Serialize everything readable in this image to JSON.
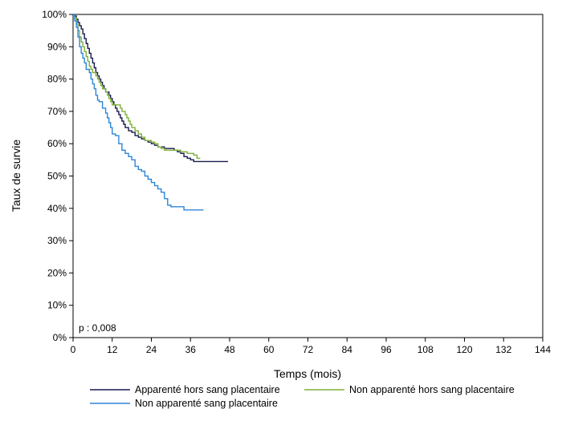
{
  "chart_data": {
    "type": "line",
    "xlabel": "Temps (mois)",
    "ylabel": "Taux de survie",
    "xlim": [
      0,
      144
    ],
    "ylim": [
      0,
      100
    ],
    "x_ticks": [
      0,
      12,
      24,
      36,
      48,
      60,
      72,
      84,
      96,
      108,
      120,
      132,
      144
    ],
    "y_ticks": [
      0,
      10,
      20,
      30,
      40,
      50,
      60,
      70,
      80,
      90,
      100
    ],
    "y_tick_labels": [
      "0%",
      "10%",
      "20%",
      "30%",
      "40%",
      "50%",
      "60%",
      "70%",
      "80%",
      "90%",
      "100%"
    ],
    "grid": false,
    "legend_position": "bottom",
    "annotation": "p : 0,008",
    "series": [
      {
        "name": "Apparenté hors sang placentaire",
        "color": "#1a1a4e",
        "points": [
          [
            0,
            100
          ],
          [
            0.5,
            99.5
          ],
          [
            1,
            98.5
          ],
          [
            1.5,
            97.5
          ],
          [
            2,
            96.5
          ],
          [
            2.5,
            95.5
          ],
          [
            3,
            94
          ],
          [
            3.5,
            92.5
          ],
          [
            4,
            91
          ],
          [
            4.5,
            89.5
          ],
          [
            5,
            88
          ],
          [
            5.5,
            86.5
          ],
          [
            6,
            85
          ],
          [
            6.5,
            83.5
          ],
          [
            7,
            82
          ],
          [
            7.5,
            81
          ],
          [
            8,
            80
          ],
          [
            8.5,
            79
          ],
          [
            9,
            78
          ],
          [
            9.5,
            77
          ],
          [
            10,
            76
          ],
          [
            11,
            75
          ],
          [
            11.5,
            74
          ],
          [
            12,
            73
          ],
          [
            12.5,
            72
          ],
          [
            13,
            71
          ],
          [
            13.5,
            70
          ],
          [
            14,
            69
          ],
          [
            14.5,
            68
          ],
          [
            15,
            67
          ],
          [
            15.5,
            66
          ],
          [
            16,
            65
          ],
          [
            17,
            64
          ],
          [
            18,
            63.5
          ],
          [
            19,
            62.5
          ],
          [
            20,
            62
          ],
          [
            21,
            61.5
          ],
          [
            22,
            61
          ],
          [
            23,
            60.5
          ],
          [
            24,
            60
          ],
          [
            25,
            59.5
          ],
          [
            26,
            59
          ],
          [
            28,
            58.5
          ],
          [
            30,
            58.5
          ],
          [
            31,
            58
          ],
          [
            32,
            57.5
          ],
          [
            33,
            57
          ],
          [
            34,
            56
          ],
          [
            35,
            55.5
          ],
          [
            36,
            55
          ],
          [
            37,
            54.5
          ],
          [
            47.5,
            54.5
          ]
        ]
      },
      {
        "name": "Non apparenté hors sang placentaire",
        "color": "#7fb03a",
        "points": [
          [
            0,
            100
          ],
          [
            0.5,
            99
          ],
          [
            1,
            97
          ],
          [
            1.5,
            95
          ],
          [
            2,
            93
          ],
          [
            2.5,
            91.5
          ],
          [
            3,
            90
          ],
          [
            3.5,
            88.5
          ],
          [
            4,
            87
          ],
          [
            4.5,
            85.5
          ],
          [
            5,
            84
          ],
          [
            5.5,
            83
          ],
          [
            6,
            82
          ],
          [
            7,
            81
          ],
          [
            7.5,
            80
          ],
          [
            8,
            79
          ],
          [
            8.5,
            78
          ],
          [
            9,
            77
          ],
          [
            10,
            76
          ],
          [
            10.5,
            75
          ],
          [
            11,
            74
          ],
          [
            11.5,
            73
          ],
          [
            12,
            72
          ],
          [
            14,
            72
          ],
          [
            14.5,
            71
          ],
          [
            15,
            70
          ],
          [
            16,
            69
          ],
          [
            16.5,
            68
          ],
          [
            17,
            67
          ],
          [
            17.5,
            66
          ],
          [
            18,
            65
          ],
          [
            19,
            64
          ],
          [
            20,
            63
          ],
          [
            21,
            62
          ],
          [
            22,
            61
          ],
          [
            23,
            61
          ],
          [
            24,
            60.5
          ],
          [
            25,
            60
          ],
          [
            26,
            59
          ],
          [
            27,
            58.5
          ],
          [
            28,
            58
          ],
          [
            30,
            58
          ],
          [
            32,
            58
          ],
          [
            33,
            57.5
          ],
          [
            35,
            57
          ],
          [
            37,
            56.5
          ],
          [
            38,
            55.5
          ],
          [
            39,
            55.5
          ]
        ]
      },
      {
        "name": "Non apparenté sang placentaire",
        "color": "#2e86d6",
        "points": [
          [
            0,
            100
          ],
          [
            0.5,
            98
          ],
          [
            1,
            96
          ],
          [
            1.5,
            93
          ],
          [
            2,
            90
          ],
          [
            2.5,
            88
          ],
          [
            3,
            86.5
          ],
          [
            3.5,
            85
          ],
          [
            4,
            83
          ],
          [
            5,
            82
          ],
          [
            5.5,
            80
          ],
          [
            6,
            78.5
          ],
          [
            6.5,
            77
          ],
          [
            7,
            75
          ],
          [
            7.5,
            73.5
          ],
          [
            8,
            73
          ],
          [
            9,
            71
          ],
          [
            10,
            69.5
          ],
          [
            10.5,
            68
          ],
          [
            11,
            66.5
          ],
          [
            11.5,
            65
          ],
          [
            12,
            63
          ],
          [
            13,
            62.5
          ],
          [
            14,
            60
          ],
          [
            15,
            58
          ],
          [
            16,
            57
          ],
          [
            17,
            56
          ],
          [
            18,
            55
          ],
          [
            19,
            53
          ],
          [
            20,
            52
          ],
          [
            21,
            51.5
          ],
          [
            22,
            50
          ],
          [
            23,
            49
          ],
          [
            24,
            48
          ],
          [
            25,
            47
          ],
          [
            26,
            46
          ],
          [
            27,
            45
          ],
          [
            28,
            43
          ],
          [
            29,
            41
          ],
          [
            30,
            40.5
          ],
          [
            32,
            40.5
          ],
          [
            34,
            39.5
          ],
          [
            40,
            39.5
          ]
        ]
      }
    ]
  }
}
